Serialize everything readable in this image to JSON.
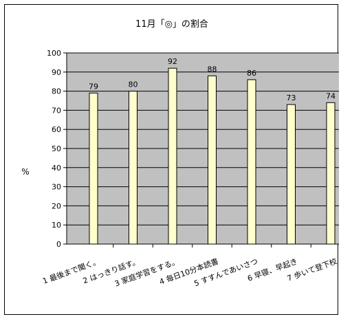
{
  "chart_data": {
    "type": "bar",
    "title": "11月「◎」の割合",
    "ylabel": "%",
    "xlabel": "",
    "ylim": [
      0,
      100
    ],
    "yticks": [
      0,
      10,
      20,
      30,
      40,
      50,
      60,
      70,
      80,
      90,
      100
    ],
    "grid": true,
    "legend": "none",
    "categories": [
      "1 最後まで聞く。",
      "2 はっきり話す。",
      "3 家庭学習をする。",
      "4 毎日10分本読書",
      "5 すすんであいさつ",
      "6 早寝、早起き",
      "7 歩いて登下校"
    ],
    "values": [
      79,
      80,
      92,
      88,
      86,
      73,
      74
    ],
    "colors": {
      "plot_background": "#c0c0c0",
      "bar_fill": "#ffffcc",
      "bar_stroke": "#000000",
      "gridline": "#000000",
      "axis": "#000000"
    }
  }
}
